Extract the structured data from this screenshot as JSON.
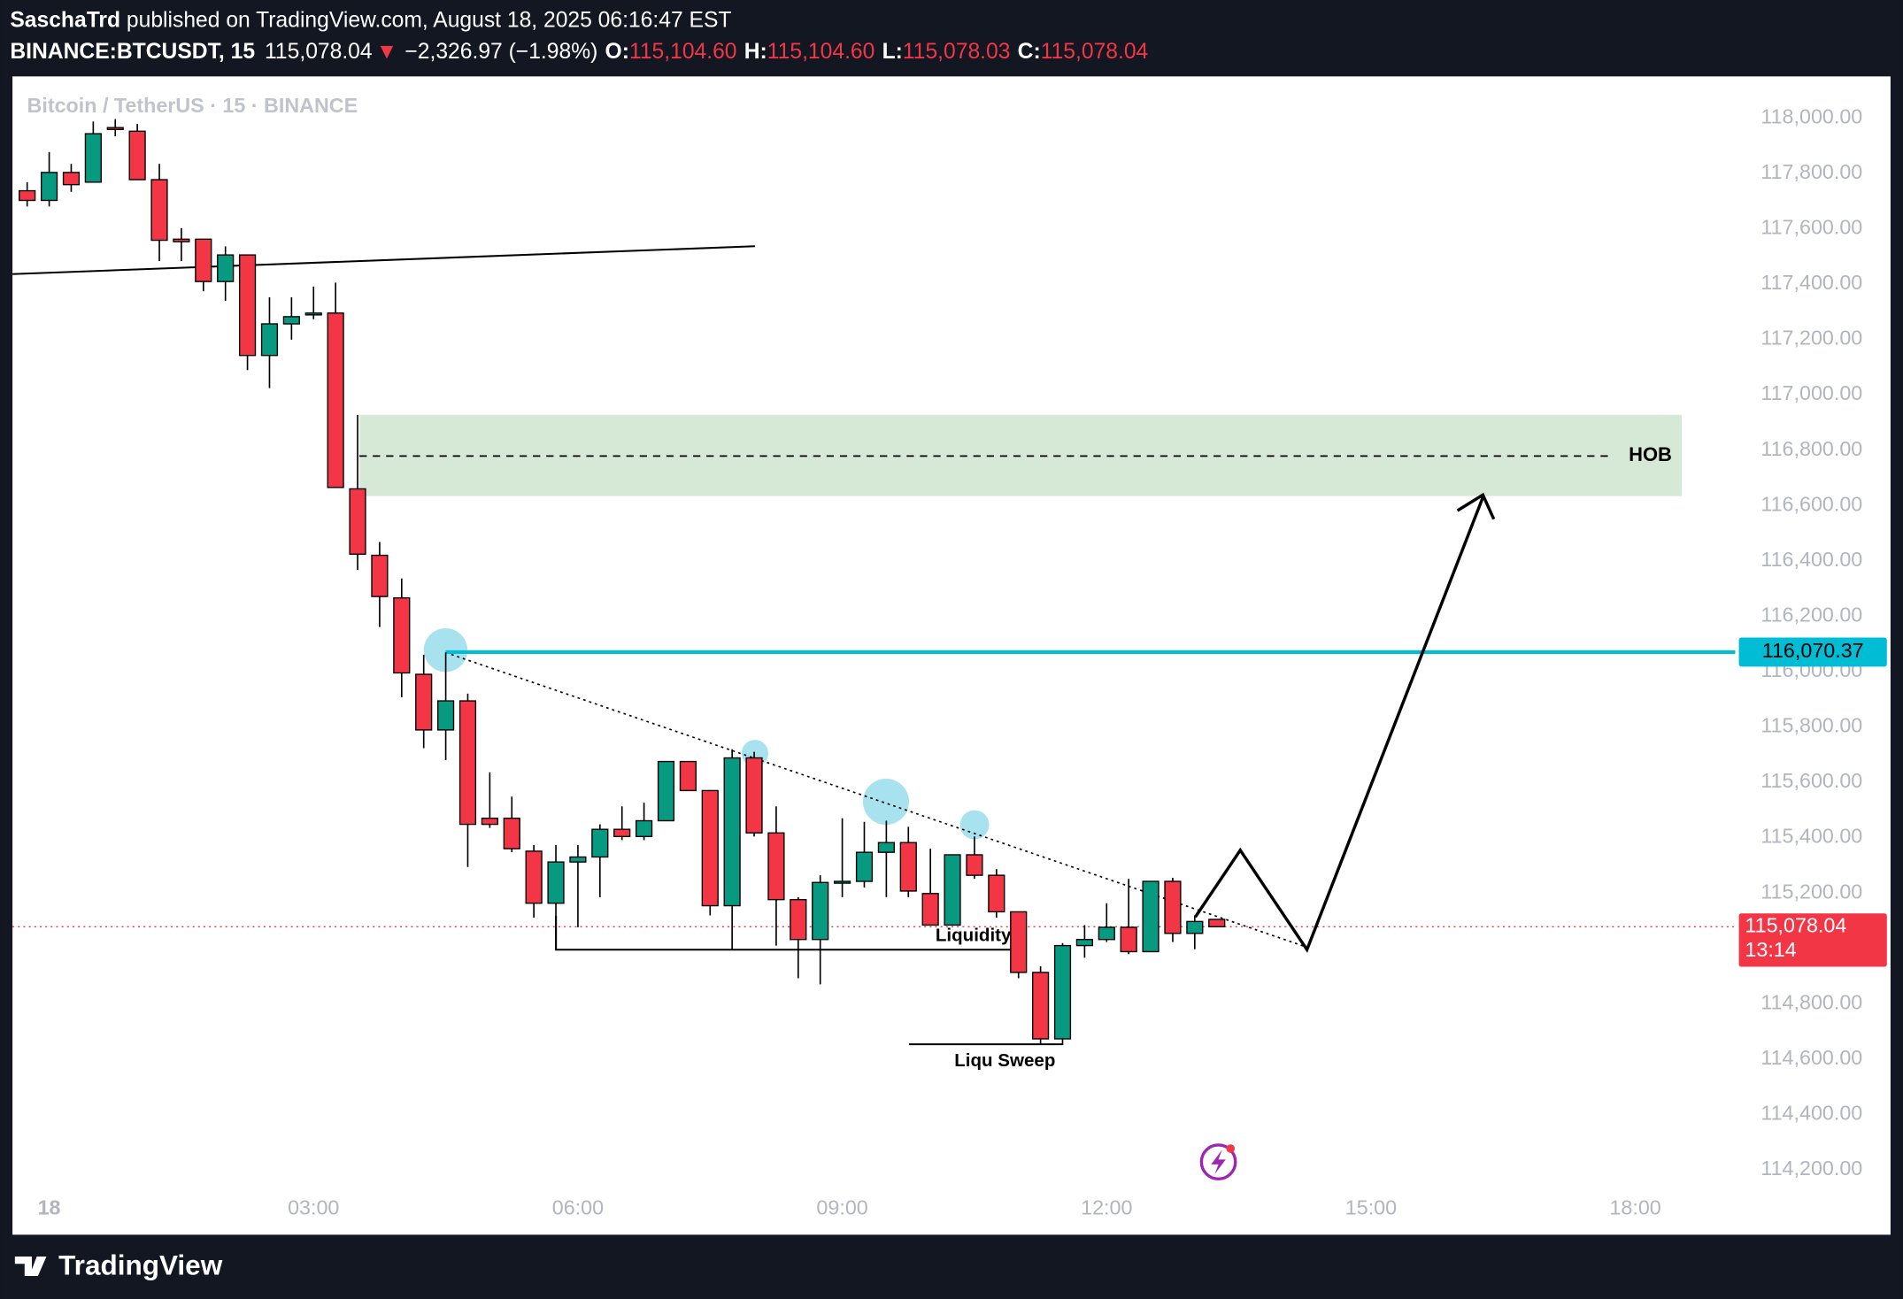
{
  "header": {
    "author": "SaschaTrd",
    "published": "published on TradingView.com, August 18, 2025 06:16:47 EST",
    "symbol": "BINANCE:BTCUSDT, 15",
    "price": "115,078.04",
    "arrow": "▼",
    "change": "−2,326.97 (−1.98%)",
    "ohlc": [
      {
        "key": "O:",
        "value": "115,104.60"
      },
      {
        "key": "H:",
        "value": "115,104.60"
      },
      {
        "key": "L:",
        "value": "115,078.03"
      },
      {
        "key": "C:",
        "value": "115,078.04"
      }
    ]
  },
  "footer": {
    "brand": "TradingView"
  },
  "chart_data": {
    "type": "candlestick",
    "title": "Bitcoin / TetherUS · 15 · BINANCE",
    "up_color": "#089981",
    "down_color": "#f23645",
    "x": [
      -15,
      0,
      15,
      30,
      45,
      60,
      75,
      90,
      105,
      120,
      135,
      150,
      165,
      180,
      195,
      210,
      225,
      240,
      255,
      270,
      285,
      300,
      315,
      330,
      345,
      360,
      375,
      390,
      405,
      420,
      435,
      450,
      465,
      480,
      495,
      510,
      525,
      540,
      555,
      570,
      585,
      600,
      615,
      630,
      645,
      660,
      675,
      690,
      705,
      720,
      735,
      750,
      765,
      780,
      795
    ],
    "open": [
      117737,
      117702,
      117803,
      117768,
      117965,
      117952,
      117777,
      117562,
      117562,
      117409,
      117505,
      117142,
      117256,
      117291,
      117295,
      116660,
      116420,
      116266,
      115990,
      115789,
      115894,
      115470,
      115470,
      115351,
      115163,
      115312,
      115330,
      115430,
      115404,
      115461,
      115675,
      115570,
      115154,
      115688,
      115417,
      115176,
      115032,
      115238,
      115242,
      115347,
      115382,
      115198,
      115084,
      115338,
      115264,
      115132,
      114913,
      114673,
      115010,
      115032,
      115076,
      114988,
      115242,
      115054,
      115104.6
    ],
    "high": [
      117768,
      117877,
      117834,
      117987,
      117996,
      117978,
      117834,
      117602,
      117562,
      117536,
      117505,
      117352,
      117352,
      117391,
      117405,
      116927,
      116468,
      116336,
      116061,
      116069,
      115920,
      115636,
      115548,
      115373,
      115373,
      115373,
      115448,
      115513,
      115526,
      115675,
      115675,
      115570,
      115719,
      115710,
      115513,
      115185,
      115264,
      115470,
      115457,
      115461,
      115439,
      115360,
      115338,
      115404,
      115286,
      115132,
      114935,
      115019,
      115084,
      115163,
      115251,
      115242,
      115255,
      115119,
      115104.6
    ],
    "low": [
      117680,
      117680,
      117733,
      117768,
      117934,
      117777,
      117483,
      117483,
      117374,
      117339,
      117089,
      117024,
      117199,
      117273,
      116665,
      116367,
      116161,
      115907,
      115723,
      115680,
      115294,
      115435,
      115347,
      115111,
      114997,
      115076,
      115185,
      115391,
      115391,
      115461,
      115570,
      115119,
      114997,
      115404,
      115010,
      114892,
      114870,
      115185,
      115220,
      115185,
      115185,
      115084,
      115084,
      115251,
      115111,
      114892,
      114651,
      114651,
      114966,
      115023,
      114979,
      114988,
      115023,
      114997,
      115078.03
    ],
    "close": [
      117702,
      117803,
      117759,
      117943,
      117960,
      117777,
      117558,
      117553,
      117409,
      117505,
      117142,
      117256,
      117282,
      117295,
      116665,
      116424,
      116271,
      115995,
      115789,
      115894,
      115448,
      115448,
      115360,
      115163,
      115312,
      115330,
      115430,
      115404,
      115461,
      115675,
      115570,
      115154,
      115688,
      115417,
      115176,
      115032,
      115238,
      115242,
      115347,
      115382,
      115207,
      115084,
      115338,
      115264,
      115132,
      114913,
      114673,
      115010,
      115032,
      115076,
      114988,
      115242,
      115054,
      115097,
      115078.04
    ],
    "xlim": [
      -25,
      1148
    ],
    "xticks": [
      {
        "value": 0,
        "label": "18"
      },
      {
        "value": 180,
        "label": "03:00"
      },
      {
        "value": 360,
        "label": "06:00"
      },
      {
        "value": 540,
        "label": "09:00"
      },
      {
        "value": 720,
        "label": "12:00"
      },
      {
        "value": 900,
        "label": "15:00"
      },
      {
        "value": 1080,
        "label": "18:00"
      }
    ],
    "ylim": [
      114110,
      118150
    ],
    "yticks": [
      {
        "value": 114200,
        "label": "114,200.00"
      },
      {
        "value": 114400,
        "label": "114,400.00"
      },
      {
        "value": 114600,
        "label": "114,600.00"
      },
      {
        "value": 114800,
        "label": "114,800.00"
      },
      {
        "value": 115000,
        "label": "115,000.00"
      },
      {
        "value": 115200,
        "label": "115,200.00"
      },
      {
        "value": 115400,
        "label": "115,400.00"
      },
      {
        "value": 115600,
        "label": "115,600.00"
      },
      {
        "value": 115800,
        "label": "115,800.00"
      },
      {
        "value": 116000,
        "label": "116,000.00"
      },
      {
        "value": 116200,
        "label": "116,200.00"
      },
      {
        "value": 116400,
        "label": "116,400.00"
      },
      {
        "value": 116600,
        "label": "116,600.00"
      },
      {
        "value": 116800,
        "label": "116,800.00"
      },
      {
        "value": 117000,
        "label": "117,000.00"
      },
      {
        "value": 117200,
        "label": "117,200.00"
      },
      {
        "value": 117400,
        "label": "117,400.00"
      },
      {
        "value": 117600,
        "label": "117,600.00"
      },
      {
        "value": 117800,
        "label": "117,800.00"
      },
      {
        "value": 118000,
        "label": "118,000.00"
      }
    ],
    "level": {
      "value": 116070.37,
      "label": "116,070.37",
      "color": "#00bcd4"
    },
    "last_price": {
      "value": 115078.04,
      "label": "115,078.04",
      "countdown": "13:14",
      "color": "#f23645"
    },
    "annotations": {
      "hob": "HOB",
      "liquidity": "Liquidity",
      "sweep": "Liqu Sweep"
    }
  }
}
